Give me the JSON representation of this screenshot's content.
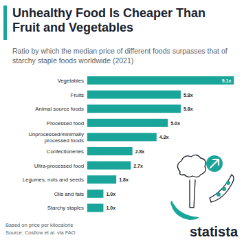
{
  "chart_data": {
    "type": "bar",
    "orientation": "horizontal",
    "title": "Unhealthy Food Is Cheaper Than Fruit and Vegetables",
    "subtitle": "Ratio by which the median price of different foods surpasses that of starchy staple foods worldwide (2021)",
    "categories": [
      "Vegetables",
      "Fruits",
      "Animal source foods",
      "Processed food",
      "Unprocessed/minimally processed foods",
      "Confectioneries",
      "Ultra-processed food",
      "Legumes, nuts and seeds",
      "Oils and fats",
      "Starchy staples"
    ],
    "values": [
      9.1,
      5.8,
      5.8,
      5.0,
      4.3,
      2.8,
      2.7,
      1.8,
      1.0,
      1.0
    ],
    "value_labels": [
      "9.1x",
      "5.8x",
      "5.8x",
      "5.0x",
      "4.3x",
      "2.8x",
      "2.7x",
      "1.8x",
      "1.0x",
      "1.0x"
    ],
    "color": "#1aa59a",
    "xlim": [
      0,
      9.3
    ],
    "data_labels": true,
    "tick_labels": "y",
    "grid": false,
    "note": "Based on price per kilocalorie",
    "source": "Source: Costlow et al. via FAO",
    "logo": "statista"
  }
}
